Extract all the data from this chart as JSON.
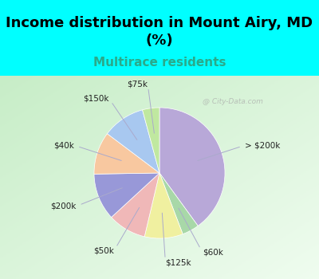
{
  "title": "Income distribution in Mount Airy, MD\n(%)",
  "subtitle": "Multirace residents",
  "labels": [
    "> $200k",
    "$60k",
    "$125k",
    "$50k",
    "$200k",
    "$40k",
    "$150k",
    "$75k"
  ],
  "sizes": [
    38,
    4,
    9,
    9,
    11,
    10,
    10,
    4
  ],
  "colors": [
    "#b8a8d8",
    "#a8d8a8",
    "#f0f0a0",
    "#f0b8b8",
    "#9898d8",
    "#f8c8a0",
    "#a8c8f0",
    "#c0e8a0"
  ],
  "bg_color_top": "#00ffff",
  "title_fontsize": 13,
  "subtitle_fontsize": 11,
  "subtitle_color": "#2aaa8a",
  "watermark": "City-Data.com",
  "startangle": 90,
  "label_fontsize": 7.5
}
